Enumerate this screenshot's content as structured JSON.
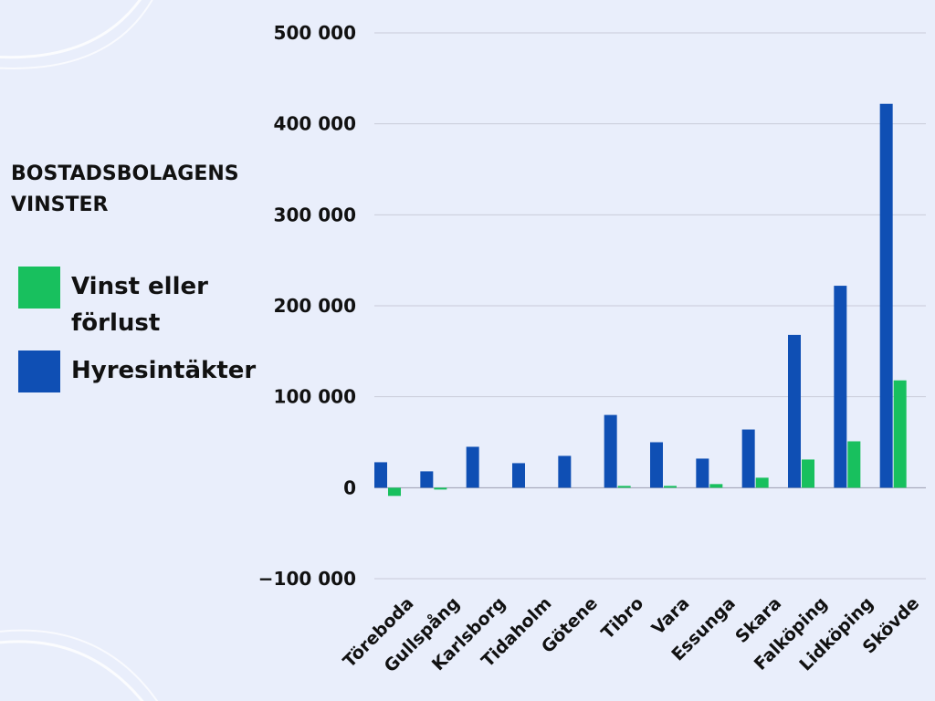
{
  "colors": {
    "background": "#e9eefb",
    "grid": "#c9cbd9",
    "vinst": "#18c05e",
    "hyres": "#0f4fb4"
  },
  "legend": {
    "title": "BOSTADSBOLAGENS VINSTER",
    "items": [
      {
        "label": "Vinst eller förlust",
        "color": "#18c05e"
      },
      {
        "label": "Hyresintäkter",
        "color": "#0f4fb4"
      }
    ]
  },
  "chart_data": {
    "type": "bar",
    "title": "BOSTADSBOLAGENS VINSTER",
    "categories": [
      "Töreboda",
      "Gullspång",
      "Karlsborg",
      "Tidaholm",
      "Götene",
      "Tibro",
      "Vara",
      "Essunga",
      "Skara",
      "Falköping",
      "Lidköping",
      "Skövde"
    ],
    "series": [
      {
        "name": "Hyresintäkter",
        "color": "#0f4fb4",
        "values": [
          28000,
          18000,
          45000,
          27000,
          35000,
          80000,
          50000,
          32000,
          64000,
          168000,
          222000,
          422000
        ]
      },
      {
        "name": "Vinst eller förlust",
        "color": "#18c05e",
        "values": [
          -9000,
          -2000,
          0,
          0,
          0,
          2000,
          2000,
          4000,
          11000,
          31000,
          51000,
          118000
        ]
      }
    ],
    "ylim": [
      -100000,
      500000
    ],
    "yticks": [
      -100000,
      0,
      100000,
      200000,
      300000,
      400000,
      500000
    ],
    "ytick_labels": [
      "−100 000",
      "0",
      "100 000",
      "200 000",
      "300 000",
      "400 000",
      "500 000"
    ],
    "grid": true,
    "legend_position": "left"
  }
}
